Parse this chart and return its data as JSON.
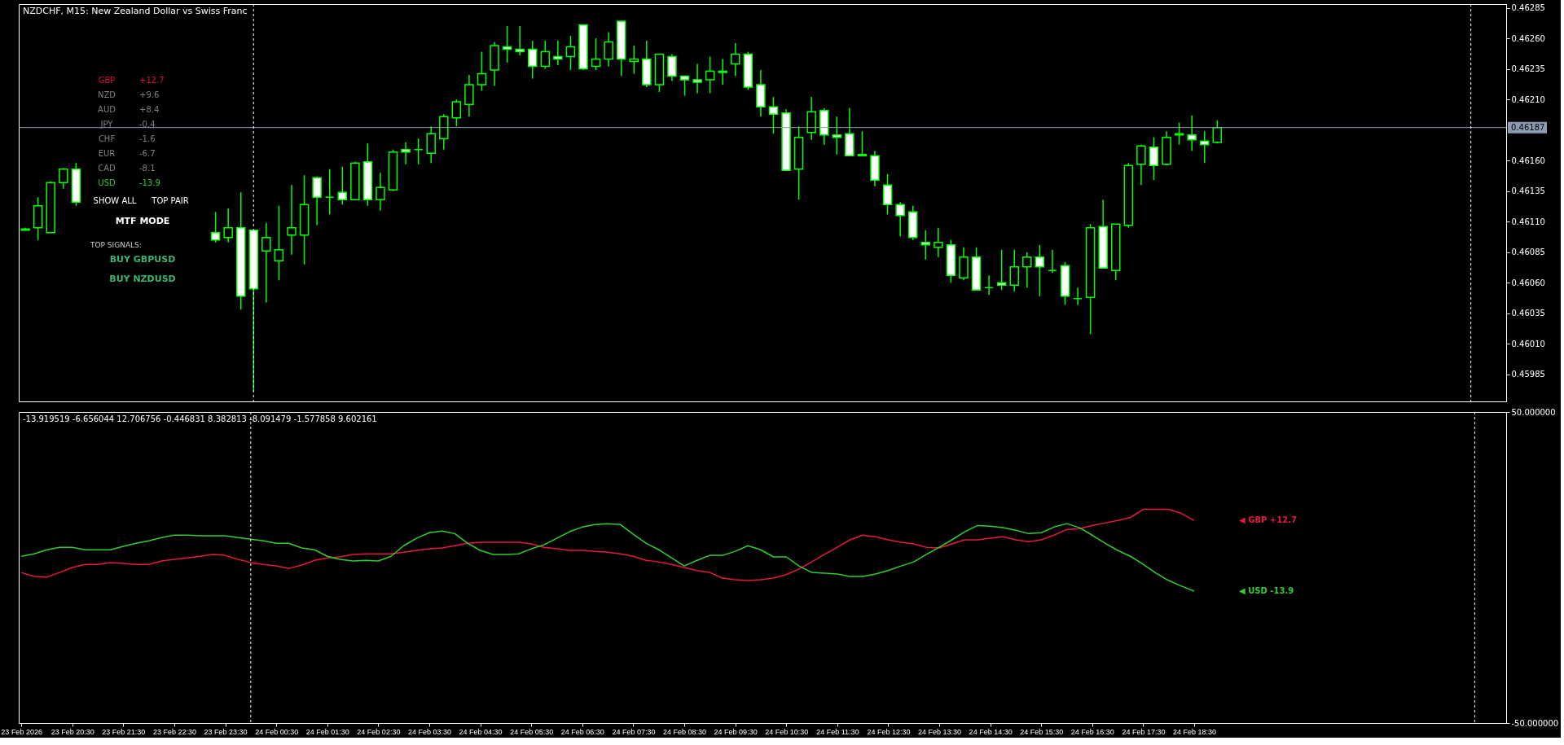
{
  "chart_data": [
    {
      "type": "candlestick",
      "title": "NZDCHF, M15:  New Zealand Dollar vs Swiss Franc",
      "color": "#00ff00",
      "grid": false,
      "tick_labels": "y",
      "x": [
        "2026-02-23T19:30",
        "2026-02-23T19:45",
        "2026-02-23T20:00",
        "2026-02-23T20:15",
        "2026-02-23T20:30",
        "2026-02-23T23:15",
        "2026-02-23T23:30",
        "2026-02-23T23:45",
        "2026-02-24T00:00",
        "2026-02-24T00:15",
        "2026-02-24T00:30",
        "2026-02-24T00:45",
        "2026-02-24T01:00",
        "2026-02-24T01:15",
        "2026-02-24T01:30",
        "2026-02-24T01:45",
        "2026-02-24T02:00",
        "2026-02-24T02:15",
        "2026-02-24T02:30",
        "2026-02-24T02:45",
        "2026-02-24T03:00",
        "2026-02-24T03:15",
        "2026-02-24T03:30",
        "2026-02-24T03:45",
        "2026-02-24T04:00",
        "2026-02-24T04:15",
        "2026-02-24T04:30",
        "2026-02-24T04:45",
        "2026-02-24T05:00",
        "2026-02-24T05:15",
        "2026-02-24T05:30",
        "2026-02-24T05:45",
        "2026-02-24T06:00",
        "2026-02-24T06:15",
        "2026-02-24T06:30",
        "2026-02-24T06:45",
        "2026-02-24T07:00",
        "2026-02-24T07:15",
        "2026-02-24T07:30",
        "2026-02-24T07:45",
        "2026-02-24T08:00",
        "2026-02-24T08:15",
        "2026-02-24T08:30",
        "2026-02-24T08:45",
        "2026-02-24T09:00",
        "2026-02-24T09:15",
        "2026-02-24T09:30",
        "2026-02-24T09:45",
        "2026-02-24T10:00",
        "2026-02-24T10:15",
        "2026-02-24T10:30",
        "2026-02-24T10:45",
        "2026-02-24T11:00",
        "2026-02-24T11:15",
        "2026-02-24T11:30",
        "2026-02-24T11:45",
        "2026-02-24T12:00",
        "2026-02-24T12:15",
        "2026-02-24T12:30",
        "2026-02-24T12:45",
        "2026-02-24T13:00",
        "2026-02-24T13:15",
        "2026-02-24T13:30",
        "2026-02-24T13:45",
        "2026-02-24T14:00",
        "2026-02-24T14:15",
        "2026-02-24T14:30",
        "2026-02-24T14:45",
        "2026-02-24T15:00",
        "2026-02-24T15:15",
        "2026-02-24T15:30",
        "2026-02-24T15:45",
        "2026-02-24T16:00",
        "2026-02-24T16:15",
        "2026-02-24T16:30",
        "2026-02-24T16:45",
        "2026-02-24T17:00",
        "2026-02-24T17:15",
        "2026-02-24T17:30",
        "2026-02-24T17:45",
        "2026-02-24T18:00",
        "2026-02-24T18:15",
        "2026-02-24T18:30",
        "2026-02-24T18:45",
        "2026-02-24T19:00"
      ],
      "ohlc": [
        [
          0.46104,
          0.46105,
          0.46103,
          0.46103
        ],
        [
          0.46105,
          0.4613,
          0.46095,
          0.46123
        ],
        [
          0.46101,
          0.46143,
          0.46101,
          0.46142
        ],
        [
          0.46142,
          0.46154,
          0.46137,
          0.46153
        ],
        [
          0.46153,
          0.46158,
          0.46123,
          0.46126
        ],
        [
          0.46101,
          0.46118,
          0.46093,
          0.46095
        ],
        [
          0.46097,
          0.46121,
          0.46093,
          0.46105
        ],
        [
          0.46105,
          0.46134,
          0.46038,
          0.46049
        ],
        [
          0.46103,
          0.46103,
          0.45971,
          0.46055
        ],
        [
          0.46086,
          0.46109,
          0.46044,
          0.46097
        ],
        [
          0.46078,
          0.46123,
          0.46062,
          0.46087
        ],
        [
          0.46099,
          0.4614,
          0.46083,
          0.46105
        ],
        [
          0.46099,
          0.46148,
          0.46075,
          0.46124
        ],
        [
          0.46146,
          0.46147,
          0.46107,
          0.4613
        ],
        [
          0.4613,
          0.46153,
          0.46116,
          0.4613
        ],
        [
          0.46134,
          0.46155,
          0.46124,
          0.46128
        ],
        [
          0.46128,
          0.46159,
          0.46128,
          0.46158
        ],
        [
          0.46159,
          0.46174,
          0.46123,
          0.46128
        ],
        [
          0.46128,
          0.4615,
          0.46119,
          0.46138
        ],
        [
          0.46136,
          0.46169,
          0.46135,
          0.46167
        ],
        [
          0.46169,
          0.46175,
          0.46157,
          0.46167
        ],
        [
          0.46169,
          0.46178,
          0.46157,
          0.46169
        ],
        [
          0.46166,
          0.46188,
          0.46158,
          0.46182
        ],
        [
          0.46178,
          0.46198,
          0.46169,
          0.46196
        ],
        [
          0.46195,
          0.4621,
          0.46188,
          0.46208
        ],
        [
          0.46206,
          0.4623,
          0.46196,
          0.46222
        ],
        [
          0.46222,
          0.46249,
          0.46217,
          0.46231
        ],
        [
          0.46234,
          0.46257,
          0.46221,
          0.46254
        ],
        [
          0.46253,
          0.4627,
          0.4624,
          0.46251
        ],
        [
          0.46251,
          0.4627,
          0.46246,
          0.46249
        ],
        [
          0.46251,
          0.46258,
          0.46227,
          0.46237
        ],
        [
          0.46237,
          0.46258,
          0.46235,
          0.46249
        ],
        [
          0.46245,
          0.46258,
          0.46238,
          0.46243
        ],
        [
          0.46245,
          0.46262,
          0.46234,
          0.46253
        ],
        [
          0.46271,
          0.46271,
          0.46234,
          0.46235
        ],
        [
          0.46237,
          0.4626,
          0.46234,
          0.46243
        ],
        [
          0.46243,
          0.46265,
          0.46237,
          0.46257
        ],
        [
          0.46274,
          0.46274,
          0.46229,
          0.46243
        ],
        [
          0.46241,
          0.46254,
          0.46231,
          0.46243
        ],
        [
          0.46243,
          0.46258,
          0.4622,
          0.46222
        ],
        [
          0.46222,
          0.46247,
          0.46216,
          0.46247
        ],
        [
          0.46245,
          0.46247,
          0.46225,
          0.46229
        ],
        [
          0.46229,
          0.46229,
          0.46213,
          0.46226
        ],
        [
          0.46226,
          0.46239,
          0.46215,
          0.46224
        ],
        [
          0.46226,
          0.46245,
          0.46215,
          0.46233
        ],
        [
          0.46233,
          0.46243,
          0.46222,
          0.46232
        ],
        [
          0.46239,
          0.46256,
          0.46229,
          0.46247
        ],
        [
          0.46247,
          0.46249,
          0.46218,
          0.4622
        ],
        [
          0.46222,
          0.46234,
          0.46196,
          0.46204
        ],
        [
          0.46204,
          0.46212,
          0.46182,
          0.46198
        ],
        [
          0.46199,
          0.46202,
          0.46152,
          0.46152
        ],
        [
          0.46153,
          0.46188,
          0.46128,
          0.46179
        ],
        [
          0.46183,
          0.46212,
          0.46177,
          0.462
        ],
        [
          0.46201,
          0.46203,
          0.46173,
          0.46181
        ],
        [
          0.46181,
          0.46196,
          0.46165,
          0.46179
        ],
        [
          0.46182,
          0.46203,
          0.46164,
          0.46164
        ],
        [
          0.46165,
          0.46184,
          0.46164,
          0.46164
        ],
        [
          0.46164,
          0.46168,
          0.46139,
          0.46144
        ],
        [
          0.4614,
          0.46149,
          0.46116,
          0.46124
        ],
        [
          0.46124,
          0.46126,
          0.46098,
          0.46115
        ],
        [
          0.46118,
          0.46123,
          0.46095,
          0.46097
        ],
        [
          0.46093,
          0.46103,
          0.46079,
          0.46091
        ],
        [
          0.46089,
          0.46105,
          0.46081,
          0.46093
        ],
        [
          0.46091,
          0.46095,
          0.4606,
          0.46066
        ],
        [
          0.46064,
          0.46089,
          0.46062,
          0.46081
        ],
        [
          0.46081,
          0.46089,
          0.46054,
          0.46054
        ],
        [
          0.46056,
          0.46066,
          0.4605,
          0.46056
        ],
        [
          0.4606,
          0.46087,
          0.46054,
          0.46058
        ],
        [
          0.46058,
          0.46087,
          0.46053,
          0.46073
        ],
        [
          0.46073,
          0.46085,
          0.46056,
          0.46081
        ],
        [
          0.46081,
          0.46091,
          0.46049,
          0.46073
        ],
        [
          0.4607,
          0.46087,
          0.46068,
          0.4607
        ],
        [
          0.46074,
          0.46077,
          0.46042,
          0.46049
        ],
        [
          0.46047,
          0.46056,
          0.46042,
          0.46047
        ],
        [
          0.46048,
          0.46108,
          0.46018,
          0.46105
        ],
        [
          0.46106,
          0.46128,
          0.46072,
          0.46072
        ],
        [
          0.4607,
          0.46108,
          0.46062,
          0.46108
        ],
        [
          0.46107,
          0.46158,
          0.46105,
          0.46156
        ],
        [
          0.46157,
          0.46173,
          0.4614,
          0.46172
        ],
        [
          0.46171,
          0.46179,
          0.46144,
          0.46156
        ],
        [
          0.46157,
          0.46184,
          0.46156,
          0.46179
        ],
        [
          0.46182,
          0.46191,
          0.46173,
          0.46181
        ],
        [
          0.46181,
          0.46197,
          0.46168,
          0.46177
        ],
        [
          0.46176,
          0.46184,
          0.46158,
          0.46173
        ],
        [
          0.46175,
          0.46193,
          0.46174,
          0.46187
        ]
      ],
      "xlim": [
        "2026-02-23T19:27",
        "2026-02-25T00:37"
      ],
      "ylim": [
        0.45963,
        0.46288
      ],
      "yticks": [
        0.46285,
        {
          "value": 0.4626,
          "label": "0.46260"
        },
        0.46235,
        {
          "value": 0.4621,
          "label": "0.46210"
        },
        {
          "value": 0.4616,
          "label": "0.46160"
        },
        0.46135,
        {
          "value": 0.4611,
          "label": "0.46110"
        },
        0.46085,
        {
          "value": 0.4606,
          "label": "0.46060"
        },
        0.46035,
        {
          "value": 0.4601,
          "label": "0.46010"
        },
        0.45985
      ],
      "ref_lines": [
        {
          "axis": "y",
          "value": 0.46187,
          "label": "0.46187",
          "color": "#8c9bb0"
        },
        {
          "axis": "x",
          "value": "2026-02-24T00:00",
          "label": null,
          "color": "#ffffff",
          "line_style": "dashed"
        },
        {
          "axis": "x",
          "value": "2026-02-25T00:00",
          "label": null,
          "color": "#ffffff",
          "line_style": "dashed"
        }
      ],
      "annotations": [
        "GBP",
        "+12.7",
        "NZD",
        "+9.6",
        "AUD",
        "+8.4",
        "JPY",
        "-0.4",
        "CHF",
        "-1.6",
        "EUR",
        "-6.7",
        "CAD",
        "-8.1",
        "USD",
        "-13.9",
        "SHOW ALL",
        "TOP PAIR",
        "MTF MODE",
        "TOP SIGNALS:",
        "BUY GBPUSD",
        "BUY NZDUSD"
      ]
    },
    {
      "type": "line",
      "grid": false,
      "x": [
        "2026-02-23T19:30",
        "2026-02-23T19:45",
        "2026-02-23T20:00",
        "2026-02-23T20:15",
        "2026-02-23T20:30",
        "2026-02-23T20:45",
        "2026-02-23T21:00",
        "2026-02-23T21:15",
        "2026-02-23T21:30",
        "2026-02-23T21:45",
        "2026-02-23T22:00",
        "2026-02-23T22:15",
        "2026-02-23T22:30",
        "2026-02-23T22:45",
        "2026-02-23T23:00",
        "2026-02-23T23:15",
        "2026-02-23T23:30",
        "2026-02-23T23:45",
        "2026-02-24T00:00",
        "2026-02-24T00:15",
        "2026-02-24T00:30",
        "2026-02-24T00:45",
        "2026-02-24T01:00",
        "2026-02-24T01:15",
        "2026-02-24T01:30",
        "2026-02-24T01:45",
        "2026-02-24T02:00",
        "2026-02-24T02:15",
        "2026-02-24T02:30",
        "2026-02-24T02:45",
        "2026-02-24T03:00",
        "2026-02-24T03:15",
        "2026-02-24T03:30",
        "2026-02-24T03:45",
        "2026-02-24T04:00",
        "2026-02-24T04:15",
        "2026-02-24T04:30",
        "2026-02-24T04:45",
        "2026-02-24T05:00",
        "2026-02-24T05:15",
        "2026-02-24T05:30",
        "2026-02-24T05:45",
        "2026-02-24T06:00",
        "2026-02-24T06:15",
        "2026-02-24T06:30",
        "2026-02-24T06:45",
        "2026-02-24T07:00",
        "2026-02-24T07:15",
        "2026-02-24T07:30",
        "2026-02-24T07:45",
        "2026-02-24T08:00",
        "2026-02-24T08:15",
        "2026-02-24T08:30",
        "2026-02-24T08:45",
        "2026-02-24T09:00",
        "2026-02-24T09:15",
        "2026-02-24T09:30",
        "2026-02-24T09:45",
        "2026-02-24T10:00",
        "2026-02-24T10:15",
        "2026-02-24T10:30",
        "2026-02-24T10:45",
        "2026-02-24T11:00",
        "2026-02-24T11:15",
        "2026-02-24T11:30",
        "2026-02-24T11:45",
        "2026-02-24T12:00",
        "2026-02-24T12:15",
        "2026-02-24T12:30",
        "2026-02-24T12:45",
        "2026-02-24T13:00",
        "2026-02-24T13:15",
        "2026-02-24T13:30",
        "2026-02-24T13:45",
        "2026-02-24T14:00",
        "2026-02-24T14:15",
        "2026-02-24T14:30",
        "2026-02-24T14:45",
        "2026-02-24T15:00",
        "2026-02-24T15:15",
        "2026-02-24T15:30",
        "2026-02-24T15:45",
        "2026-02-24T16:00",
        "2026-02-24T16:15",
        "2026-02-24T16:30",
        "2026-02-24T16:45",
        "2026-02-24T17:00",
        "2026-02-24T17:15",
        "2026-02-24T17:30",
        "2026-02-24T17:45",
        "2026-02-24T18:00",
        "2026-02-24T18:15",
        "2026-02-24T18:30"
      ],
      "series": [
        {
          "name": "◀ GBP +12.7",
          "color": "#e6193c",
          "values": [
            -1.6,
            -2.9,
            -3.1,
            -1.6,
            0,
            1.0,
            1.0,
            1.6,
            1.3,
            1.0,
            1.0,
            2.1,
            2.6,
            3.1,
            3.6,
            4.2,
            3.9,
            2.6,
            1.6,
            1.0,
            0.5,
            -0.3,
            0.8,
            2.3,
            3.1,
            3.4,
            4.2,
            4.4,
            4.4,
            4.4,
            4.9,
            5.5,
            6.0,
            6.3,
            7.0,
            7.8,
            8.1,
            8.1,
            8.1,
            8.1,
            7.6,
            6.5,
            6.0,
            5.5,
            5.5,
            5.2,
            4.9,
            4.4,
            3.6,
            2.3,
            1.8,
            1.0,
            0,
            -1.0,
            -1.6,
            -3.4,
            -3.9,
            -4.2,
            -3.9,
            -3.4,
            -2.3,
            -0.5,
            1.8,
            4.2,
            6.5,
            8.9,
            10.4,
            9.9,
            8.9,
            8.1,
            7.6,
            6.5,
            6.3,
            7.6,
            8.9,
            8.9,
            9.4,
            9.9,
            8.9,
            8.3,
            8.9,
            10.4,
            12.2,
            12.5,
            13.5,
            14.3,
            15.1,
            16.1,
            18.7,
            18.7,
            18.7,
            17.4,
            15.1
          ]
        },
        {
          "name": "◀ USD -13.9",
          "color": "#32cd32",
          "values": [
            3.6,
            4.4,
            5.7,
            6.5,
            6.5,
            5.7,
            5.7,
            5.7,
            6.8,
            7.8,
            8.6,
            9.6,
            10.4,
            10.4,
            10.2,
            10.2,
            10.2,
            9.6,
            9.1,
            8.6,
            7.8,
            7.8,
            6.3,
            5.7,
            3.6,
            2.6,
            2.1,
            2.3,
            2.1,
            3.6,
            7.0,
            9.4,
            11.2,
            11.7,
            10.9,
            7.8,
            5.5,
            4.2,
            4.2,
            4.4,
            6.0,
            7.3,
            9.4,
            11.5,
            13.0,
            13.8,
            14.1,
            13.8,
            10.7,
            7.8,
            5.7,
            3.1,
            0.5,
            2.3,
            3.9,
            3.9,
            5.2,
            7.0,
            5.7,
            3.4,
            3.4,
            0.5,
            -1.6,
            -1.8,
            -2.1,
            -2.9,
            -2.9,
            -2.1,
            -1.0,
            0.5,
            1.8,
            4.2,
            6.5,
            8.9,
            11.5,
            13.5,
            13.3,
            12.8,
            12.0,
            10.9,
            11.2,
            13.0,
            14.1,
            12.8,
            10.4,
            7.8,
            5.5,
            3.6,
            1.0,
            -1.8,
            -4.2,
            -6.0,
            -7.6
          ]
        }
      ],
      "xlim": [
        "2026-02-23T19:27",
        "2026-02-25T00:37"
      ],
      "xticks": [
        {
          "value": "2026-02-23T19:30",
          "label": "23 Feb 2026"
        },
        {
          "value": "2026-02-23T20:30",
          "label": "23 Feb 20:30"
        },
        {
          "value": "2026-02-23T21:30",
          "label": "23 Feb 21:30"
        },
        {
          "value": "2026-02-23T22:30",
          "label": "23 Feb 22:30"
        },
        {
          "value": "2026-02-23T23:30",
          "label": "23 Feb 23:30"
        },
        {
          "value": "2026-02-24T00:30",
          "label": "24 Feb 00:30"
        },
        {
          "value": "2026-02-24T01:30",
          "label": "24 Feb 01:30"
        },
        {
          "value": "2026-02-24T02:30",
          "label": "24 Feb 02:30"
        },
        {
          "value": "2026-02-24T03:30",
          "label": "24 Feb 03:30"
        },
        {
          "value": "2026-02-24T04:30",
          "label": "24 Feb 04:30"
        },
        {
          "value": "2026-02-24T05:30",
          "label": "24 Feb 05:30"
        },
        {
          "value": "2026-02-24T06:30",
          "label": "24 Feb 06:30"
        },
        {
          "value": "2026-02-24T07:30",
          "label": "24 Feb 07:30"
        },
        {
          "value": "2026-02-24T08:30",
          "label": "24 Feb 08:30"
        },
        {
          "value": "2026-02-24T09:30",
          "label": "24 Feb 09:30"
        },
        {
          "value": "2026-02-24T10:30",
          "label": "24 Feb 10:30"
        },
        {
          "value": "2026-02-24T11:30",
          "label": "24 Feb 11:30"
        },
        {
          "value": "2026-02-24T12:30",
          "label": "24 Feb 12:30"
        },
        {
          "value": "2026-02-24T13:30",
          "label": "24 Feb 13:30"
        },
        {
          "value": "2026-02-24T14:30",
          "label": "24 Feb 14:30"
        },
        {
          "value": "2026-02-24T15:30",
          "label": "24 Feb 15:30"
        },
        {
          "value": "2026-02-24T16:30",
          "label": "24 Feb 16:30"
        },
        {
          "value": "2026-02-24T17:30",
          "label": "24 Feb 17:30"
        },
        {
          "value": "2026-02-24T18:30",
          "label": "24 Feb 18:30"
        }
      ],
      "ylim": [
        -50,
        50
      ],
      "yticks": [
        {
          "value": 50,
          "label": "50.000000"
        },
        {
          "value": -50,
          "label": "-50.000000"
        }
      ],
      "ref_lines": [
        {
          "axis": "x",
          "value": "2026-02-24T00:00",
          "label": null,
          "color": "#ffffff",
          "line_style": "dashed"
        },
        {
          "axis": "x",
          "value": "2026-02-25T00:00",
          "label": null,
          "color": "#ffffff",
          "line_style": "dashed"
        }
      ],
      "annotations": [
        "-13.919519 -6.656044 12.706756 -0.446831 8.382813 -8.091479 -1.577858 9.602161"
      ]
    }
  ]
}
